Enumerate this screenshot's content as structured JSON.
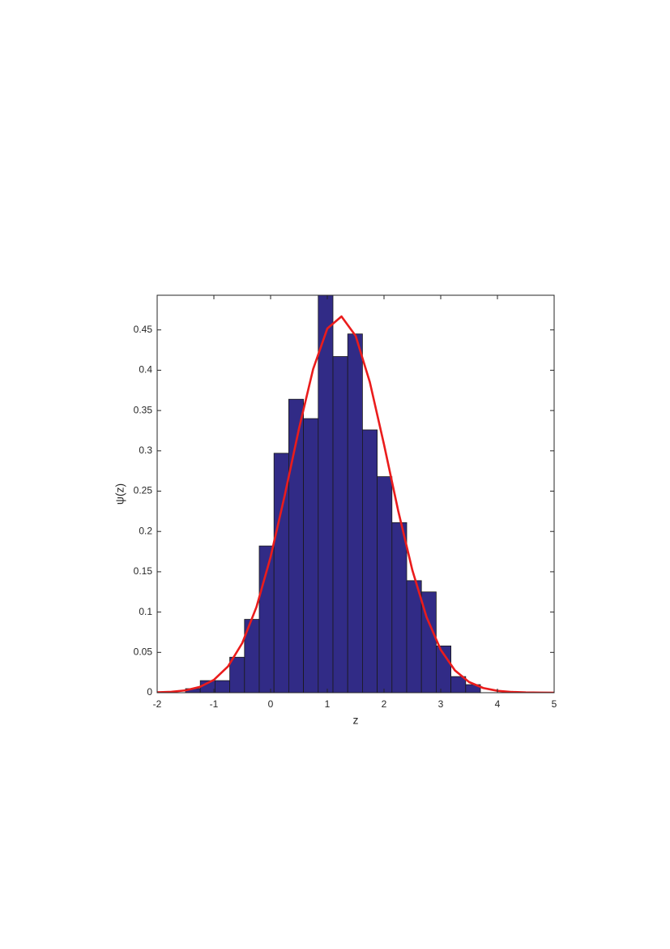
{
  "chart_data": {
    "type": "histogram",
    "xlabel": "z",
    "ylabel": "ψ(z)",
    "bins": [
      -1.5,
      -1.24,
      -0.98,
      -0.72,
      -0.46,
      -0.2,
      0.06,
      0.32,
      0.58,
      0.84,
      1.1,
      1.36,
      1.62,
      1.88,
      2.14,
      2.4,
      2.66,
      2.92,
      3.18,
      3.44,
      3.7
    ],
    "values": [
      0.005,
      0.015,
      0.015,
      0.044,
      0.091,
      0.182,
      0.297,
      0.364,
      0.34,
      0.5,
      0.417,
      0.445,
      0.326,
      0.268,
      0.211,
      0.139,
      0.125,
      0.058,
      0.02,
      0.01
    ],
    "color": "#312b86",
    "curve": {
      "type": "line",
      "color": "#ea1c1c",
      "x": [
        -2,
        -1.75,
        -1.5,
        -1.25,
        -1,
        -0.75,
        -0.5,
        -0.25,
        0,
        0.25,
        0.5,
        0.75,
        1,
        1.25,
        1.5,
        1.75,
        2,
        2.25,
        2.5,
        2.75,
        3,
        3.25,
        3.5,
        3.75,
        4,
        4.25,
        4.5,
        4.75,
        5
      ],
      "values": [
        0.0004,
        0.0011,
        0.0029,
        0.0071,
        0.0159,
        0.0326,
        0.0615,
        0.1061,
        0.1683,
        0.245,
        0.3273,
        0.4014,
        0.4517,
        0.4667,
        0.4426,
        0.3852,
        0.3078,
        0.2257,
        0.1519,
        0.0938,
        0.0532,
        0.0277,
        0.0132,
        0.0058,
        0.0023,
        0.0009,
        0.0003,
        0.0001,
        0
      ]
    },
    "xlim": [
      -2,
      5
    ],
    "xticks": [
      -2,
      -1,
      0,
      1,
      2,
      3,
      4,
      5
    ],
    "ylim": [
      0,
      0.493
    ],
    "yticks": [
      0,
      0.05,
      0.1,
      0.15,
      0.2,
      0.25,
      0.3,
      0.35,
      0.4,
      0.45
    ]
  }
}
